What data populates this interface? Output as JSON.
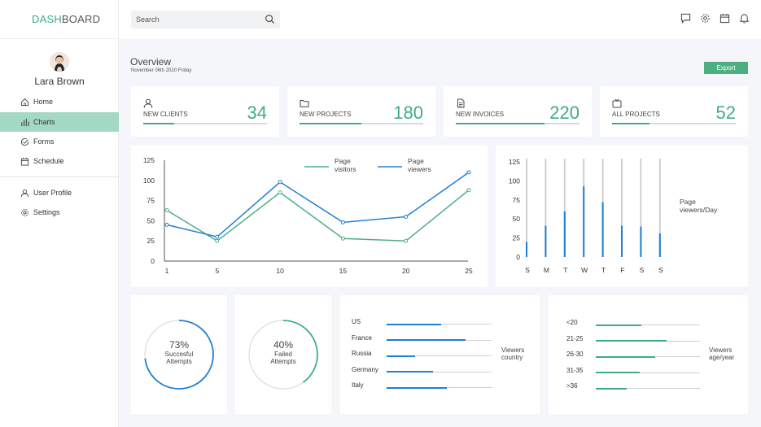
{
  "brand": {
    "part1": "DASH",
    "part2": "BOARD"
  },
  "search": {
    "placeholder": "Search"
  },
  "top_icons": [
    "chat-icon",
    "gear-icon",
    "calendar-icon",
    "bell-icon"
  ],
  "user": {
    "name": "Lara Brown"
  },
  "nav": [
    {
      "label": "Home",
      "icon": "home-icon",
      "active": false
    },
    {
      "label": "Charts",
      "icon": "bar-chart-icon",
      "active": true
    },
    {
      "label": "Forms",
      "icon": "check-circle-icon",
      "active": false
    },
    {
      "label": "Schedule",
      "icon": "calendar-icon",
      "active": false
    },
    {
      "label": "User Profile",
      "icon": "user-icon",
      "active": false
    },
    {
      "label": "Settings",
      "icon": "gear-icon",
      "active": false
    }
  ],
  "overview": {
    "title": "Overview",
    "date": "November 06th 2020 Friday",
    "export_label": "Export"
  },
  "stats": [
    {
      "label": "NEW CLIENTS",
      "value": "34",
      "progress": 0.25,
      "icon": "user-icon"
    },
    {
      "label": "NEW PROJECTS",
      "value": "180",
      "progress": 0.5,
      "icon": "folder-icon"
    },
    {
      "label": "NEW INVOICES",
      "value": "220",
      "progress": 0.72,
      "icon": "document-icon"
    },
    {
      "label": "ALL PROJECTS",
      "value": "52",
      "progress": 0.3,
      "icon": "tv-icon"
    }
  ],
  "colors": {
    "accent": "#3dae84",
    "blue": "#1e7fd4",
    "active_nav": "#a3d9c2"
  },
  "chart_data": [
    {
      "type": "line",
      "x": [
        1,
        5,
        10,
        15,
        20,
        25
      ],
      "xticks": [
        "1",
        "5",
        "10",
        "15",
        "20",
        "25"
      ],
      "yticks": [
        "0",
        "25",
        "50",
        "75",
        "100",
        "125"
      ],
      "ylim": [
        0,
        125
      ],
      "series": [
        {
          "name": "Page visitors",
          "name_lines": [
            "Page",
            "visitors"
          ],
          "color": "#4caf82",
          "values": [
            63,
            25,
            85,
            28,
            25,
            88
          ]
        },
        {
          "name": "Page viewers",
          "name_lines": [
            "Page",
            "viewers"
          ],
          "color": "#1e7fd4",
          "values": [
            45,
            30,
            98,
            48,
            55,
            110
          ]
        }
      ]
    },
    {
      "type": "bar",
      "categories": [
        "S",
        "M",
        "T",
        "W",
        "T",
        "F",
        "S",
        "S"
      ],
      "values": [
        20,
        41,
        60,
        93,
        72,
        41,
        40,
        31
      ],
      "yticks": [
        "0",
        "25",
        "50",
        "75",
        "100",
        "125"
      ],
      "ylim": [
        0,
        125
      ],
      "legend_lines": [
        "Page",
        "viewers/Day"
      ],
      "color": "#1e7fd4"
    }
  ],
  "donuts": [
    {
      "pct": "73%",
      "value": 0.73,
      "label_lines": [
        "Succesful",
        "Attempts"
      ],
      "color": "#1e7fd4"
    },
    {
      "pct": "40%",
      "value": 0.4,
      "label_lines": [
        "Failed",
        "Attempts"
      ],
      "color": "#3dae84"
    }
  ],
  "countries": {
    "note_lines": [
      "Viewers",
      "country"
    ],
    "color": "#1e7fd4",
    "rows": [
      {
        "label": "US",
        "value": 0.52
      },
      {
        "label": "France",
        "value": 0.75
      },
      {
        "label": "Russia",
        "value": 0.27
      },
      {
        "label": "Germany",
        "value": 0.44
      },
      {
        "label": "Italy",
        "value": 0.57
      }
    ]
  },
  "ages": {
    "note_lines": [
      "Viewers",
      "age/year"
    ],
    "color": "#3dae84",
    "rows": [
      {
        "label": "<20",
        "value": 0.44
      },
      {
        "label": "21-25",
        "value": 0.68
      },
      {
        "label": "26-30",
        "value": 0.57
      },
      {
        "label": "31-35",
        "value": 0.42
      },
      {
        "label": ">36",
        "value": 0.3
      }
    ]
  }
}
